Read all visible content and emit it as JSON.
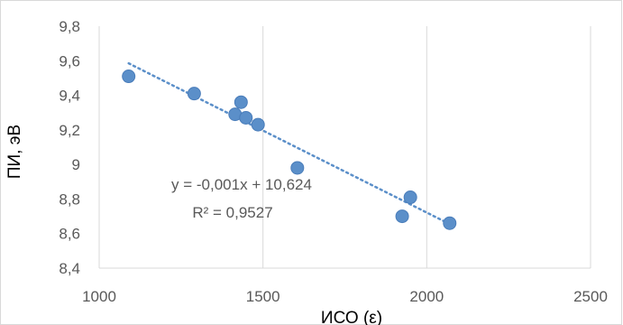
{
  "chart_data": {
    "type": "scatter",
    "xlabel": "ИСО (ε)",
    "ylabel": "ПИ, эВ",
    "xlim": [
      1000,
      2500
    ],
    "ylim": [
      8.4,
      9.8
    ],
    "x_ticks": [
      1000,
      1500,
      2000,
      2500
    ],
    "x_tick_labels": [
      "1000",
      "1500",
      "2000",
      "2500"
    ],
    "y_ticks": [
      8.4,
      8.6,
      8.8,
      9.0,
      9.2,
      9.4,
      9.6,
      9.8
    ],
    "y_tick_labels": [
      "8,4",
      "8,6",
      "8,8",
      "9",
      "9,2",
      "9,4",
      "9,6",
      "9,8"
    ],
    "grid": {
      "vertical": true,
      "horizontal": false
    },
    "series": [
      {
        "color": "#5B8FC9",
        "points": [
          {
            "x": 1090,
            "y": 9.51
          },
          {
            "x": 1290,
            "y": 9.41
          },
          {
            "x": 1415,
            "y": 9.29
          },
          {
            "x": 1433,
            "y": 9.36
          },
          {
            "x": 1448,
            "y": 9.27
          },
          {
            "x": 1485,
            "y": 9.23
          },
          {
            "x": 1605,
            "y": 8.98
          },
          {
            "x": 1925,
            "y": 8.7
          },
          {
            "x": 1950,
            "y": 8.81
          },
          {
            "x": 2070,
            "y": 8.66
          }
        ]
      }
    ],
    "trendline": {
      "x_start": 1090,
      "x_end": 2070,
      "y_start": 9.585,
      "y_end": 8.655,
      "color": "#5B8FC9",
      "style": "dotted",
      "equation": "y = -0,001x + 10,624",
      "r_squared": "R² = 0,9527"
    }
  }
}
